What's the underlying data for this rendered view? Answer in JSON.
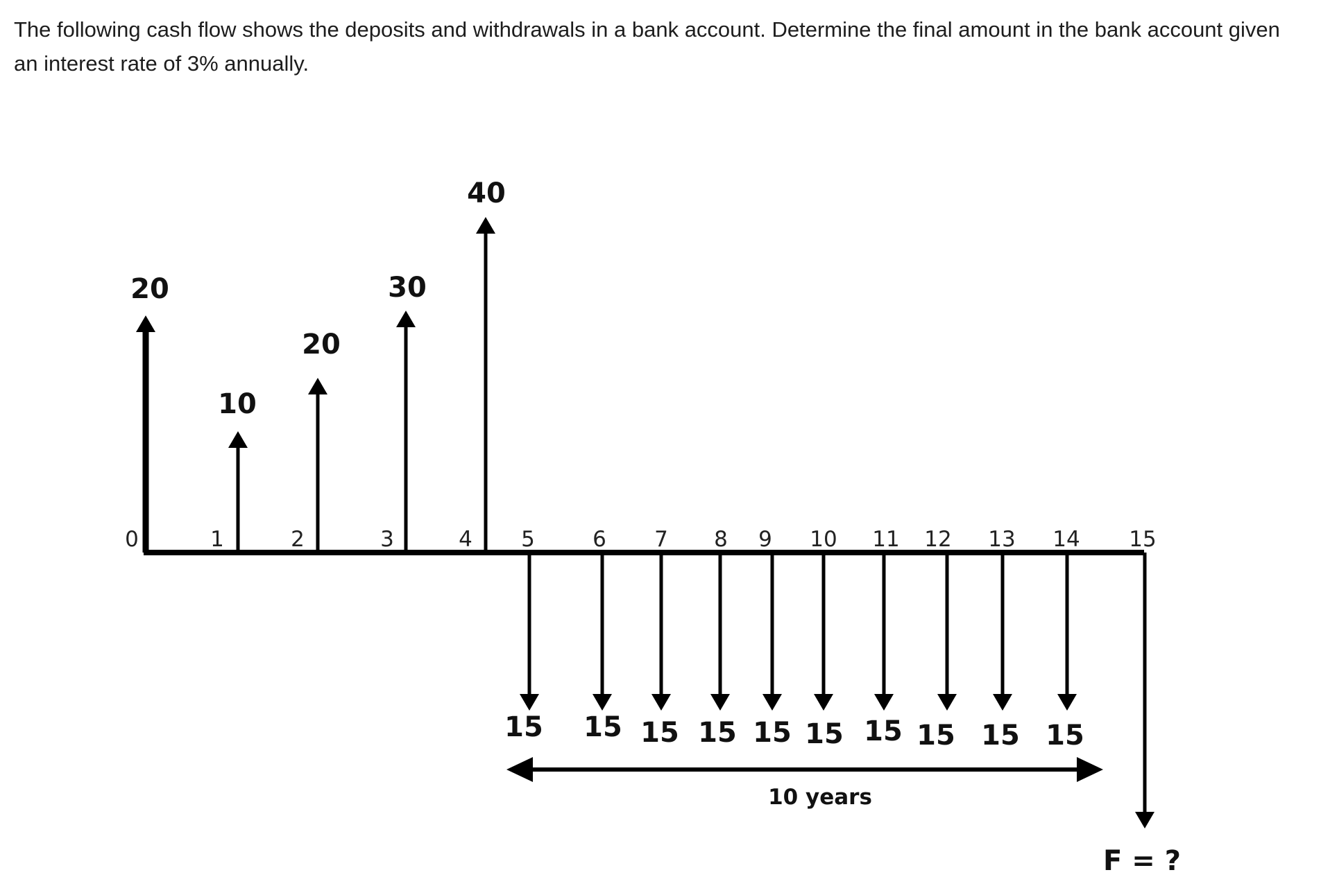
{
  "question": {
    "text": "The following cash flow shows the deposits and withdrawals in a bank account. Determine the final amount in the bank account given an interest rate of 3% annually."
  },
  "diagram": {
    "periods": [
      "0",
      "1",
      "2",
      "3",
      "4",
      "5",
      "6",
      "7",
      "8",
      "9",
      "10",
      "11",
      "12",
      "13",
      "14",
      "15"
    ],
    "deposits": [
      {
        "period": 0,
        "amount": "20"
      },
      {
        "period": 1,
        "amount": "10"
      },
      {
        "period": 2,
        "amount": "20"
      },
      {
        "period": 3,
        "amount": "30"
      },
      {
        "period": 4,
        "amount": "40"
      }
    ],
    "withdrawals": [
      {
        "period": 5,
        "amount": "15"
      },
      {
        "period": 6,
        "amount": "15"
      },
      {
        "period": 7,
        "amount": "15"
      },
      {
        "period": 8,
        "amount": "15"
      },
      {
        "period": 9,
        "amount": "15"
      },
      {
        "period": 10,
        "amount": "15"
      },
      {
        "period": 11,
        "amount": "15"
      },
      {
        "period": 12,
        "amount": "15"
      },
      {
        "period": 13,
        "amount": "15"
      },
      {
        "period": 14,
        "amount": "15"
      }
    ],
    "span_label": "10 years",
    "future_label": "F = ?"
  }
}
